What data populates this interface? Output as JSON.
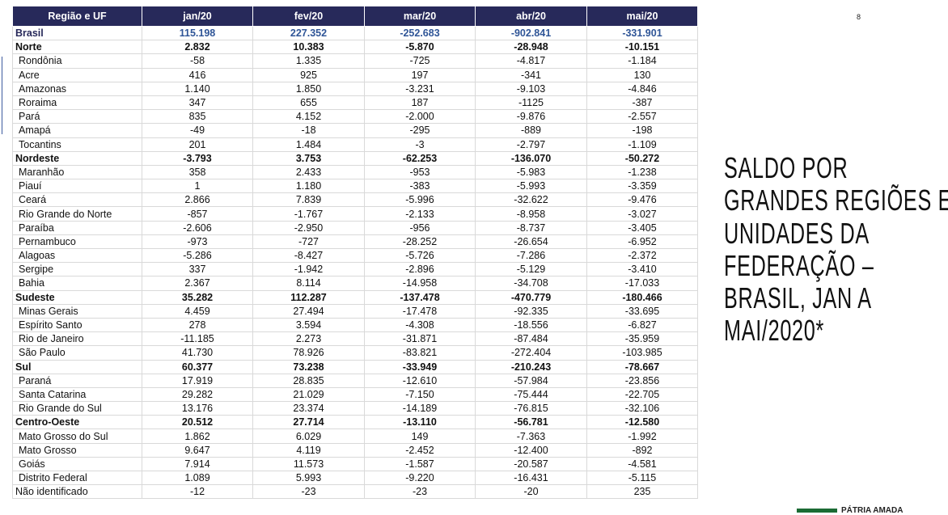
{
  "page_number": "8",
  "title_lines": [
    "SALDO POR",
    "GRANDES REGIÕES E",
    "UNIDADES DA",
    "FEDERAÇÃO –",
    "BRASIL, JAN A",
    "MAI/2020*"
  ],
  "footer": {
    "logo_text": "PÁTRIA AMADA"
  },
  "table": {
    "header": [
      "Região e UF",
      "jan/20",
      "fev/20",
      "mar/20",
      "abr/20",
      "mai/20"
    ],
    "rows": [
      {
        "style": "total",
        "label": "Brasil",
        "cells": [
          "115.198",
          "227.352",
          "-252.683",
          "-902.841",
          "-331.901"
        ]
      },
      {
        "style": "region",
        "label": "Norte",
        "cells": [
          "2.832",
          "10.383",
          "-5.870",
          "-28.948",
          "-10.151"
        ]
      },
      {
        "style": "state",
        "label": "Rondônia",
        "cells": [
          "-58",
          "1.335",
          "-725",
          "-4.817",
          "-1.184"
        ]
      },
      {
        "style": "state",
        "label": "Acre",
        "cells": [
          "416",
          "925",
          "197",
          "-341",
          "130"
        ]
      },
      {
        "style": "state",
        "label": "Amazonas",
        "cells": [
          "1.140",
          "1.850",
          "-3.231",
          "-9.103",
          "-4.846"
        ]
      },
      {
        "style": "state",
        "label": "Roraima",
        "cells": [
          "347",
          "655",
          "187",
          "-1125",
          "-387"
        ]
      },
      {
        "style": "state",
        "label": "Pará",
        "cells": [
          "835",
          "4.152",
          "-2.000",
          "-9.876",
          "-2.557"
        ]
      },
      {
        "style": "state",
        "label": "Amapá",
        "cells": [
          "-49",
          "-18",
          "-295",
          "-889",
          "-198"
        ]
      },
      {
        "style": "state",
        "label": "Tocantins",
        "cells": [
          "201",
          "1.484",
          "-3",
          "-2.797",
          "-1.109"
        ]
      },
      {
        "style": "region",
        "label": "Nordeste",
        "cells": [
          "-3.793",
          "3.753",
          "-62.253",
          "-136.070",
          "-50.272"
        ]
      },
      {
        "style": "state",
        "label": "Maranhão",
        "cells": [
          "358",
          "2.433",
          "-953",
          "-5.983",
          "-1.238"
        ]
      },
      {
        "style": "state",
        "label": "Piauí",
        "cells": [
          "1",
          "1.180",
          "-383",
          "-5.993",
          "-3.359"
        ]
      },
      {
        "style": "state",
        "label": "Ceará",
        "cells": [
          "2.866",
          "7.839",
          "-5.996",
          "-32.622",
          "-9.476"
        ]
      },
      {
        "style": "state",
        "label": "Rio Grande do Norte",
        "cells": [
          "-857",
          "-1.767",
          "-2.133",
          "-8.958",
          "-3.027"
        ]
      },
      {
        "style": "state",
        "label": "Paraíba",
        "cells": [
          "-2.606",
          "-2.950",
          "-956",
          "-8.737",
          "-3.405"
        ]
      },
      {
        "style": "state",
        "label": "Pernambuco",
        "cells": [
          "-973",
          "-727",
          "-28.252",
          "-26.654",
          "-6.952"
        ]
      },
      {
        "style": "state",
        "label": "Alagoas",
        "cells": [
          "-5.286",
          "-8.427",
          "-5.726",
          "-7.286",
          "-2.372"
        ]
      },
      {
        "style": "state",
        "label": "Sergipe",
        "cells": [
          "337",
          "-1.942",
          "-2.896",
          "-5.129",
          "-3.410"
        ]
      },
      {
        "style": "state",
        "label": "Bahia",
        "cells": [
          "2.367",
          "8.114",
          "-14.958",
          "-34.708",
          "-17.033"
        ]
      },
      {
        "style": "region",
        "label": "Sudeste",
        "cells": [
          "35.282",
          "112.287",
          "-137.478",
          "-470.779",
          "-180.466"
        ]
      },
      {
        "style": "state",
        "label": "Minas Gerais",
        "cells": [
          "4.459",
          "27.494",
          "-17.478",
          "-92.335",
          "-33.695"
        ]
      },
      {
        "style": "state",
        "label": "Espírito Santo",
        "cells": [
          "278",
          "3.594",
          "-4.308",
          "-18.556",
          "-6.827"
        ]
      },
      {
        "style": "state",
        "label": "Rio de Janeiro",
        "cells": [
          "-11.185",
          "2.273",
          "-31.871",
          "-87.484",
          "-35.959"
        ]
      },
      {
        "style": "state",
        "label": "São Paulo",
        "cells": [
          "41.730",
          "78.926",
          "-83.821",
          "-272.404",
          "-103.985"
        ]
      },
      {
        "style": "region",
        "label": "Sul",
        "cells": [
          "60.377",
          "73.238",
          "-33.949",
          "-210.243",
          "-78.667"
        ]
      },
      {
        "style": "state",
        "label": "Paraná",
        "cells": [
          "17.919",
          "28.835",
          "-12.610",
          "-57.984",
          "-23.856"
        ]
      },
      {
        "style": "state",
        "label": "Santa Catarina",
        "cells": [
          "29.282",
          "21.029",
          "-7.150",
          "-75.444",
          "-22.705"
        ]
      },
      {
        "style": "state",
        "label": "Rio Grande do Sul",
        "cells": [
          "13.176",
          "23.374",
          "-14.189",
          "-76.815",
          "-32.106"
        ]
      },
      {
        "style": "region",
        "label": "Centro-Oeste",
        "cells": [
          "20.512",
          "27.714",
          "-13.110",
          "-56.781",
          "-12.580"
        ]
      },
      {
        "style": "state",
        "label": "Mato Grosso do Sul",
        "cells": [
          "1.862",
          "6.029",
          "149",
          "-7.363",
          "-1.992"
        ]
      },
      {
        "style": "state",
        "label": "Mato Grosso",
        "cells": [
          "9.647",
          "4.119",
          "-2.452",
          "-12.400",
          "-892"
        ]
      },
      {
        "style": "state",
        "label": "Goiás",
        "cells": [
          "7.914",
          "11.573",
          "-1.587",
          "-20.587",
          "-4.581"
        ]
      },
      {
        "style": "state",
        "label": "Distrito Federal",
        "cells": [
          "1.089",
          "5.993",
          "-9.220",
          "-16.431",
          "-5.115"
        ]
      },
      {
        "style": "other",
        "label": "Não identificado",
        "cells": [
          "-12",
          "-23",
          "-23",
          "-20",
          "235"
        ]
      }
    ]
  }
}
